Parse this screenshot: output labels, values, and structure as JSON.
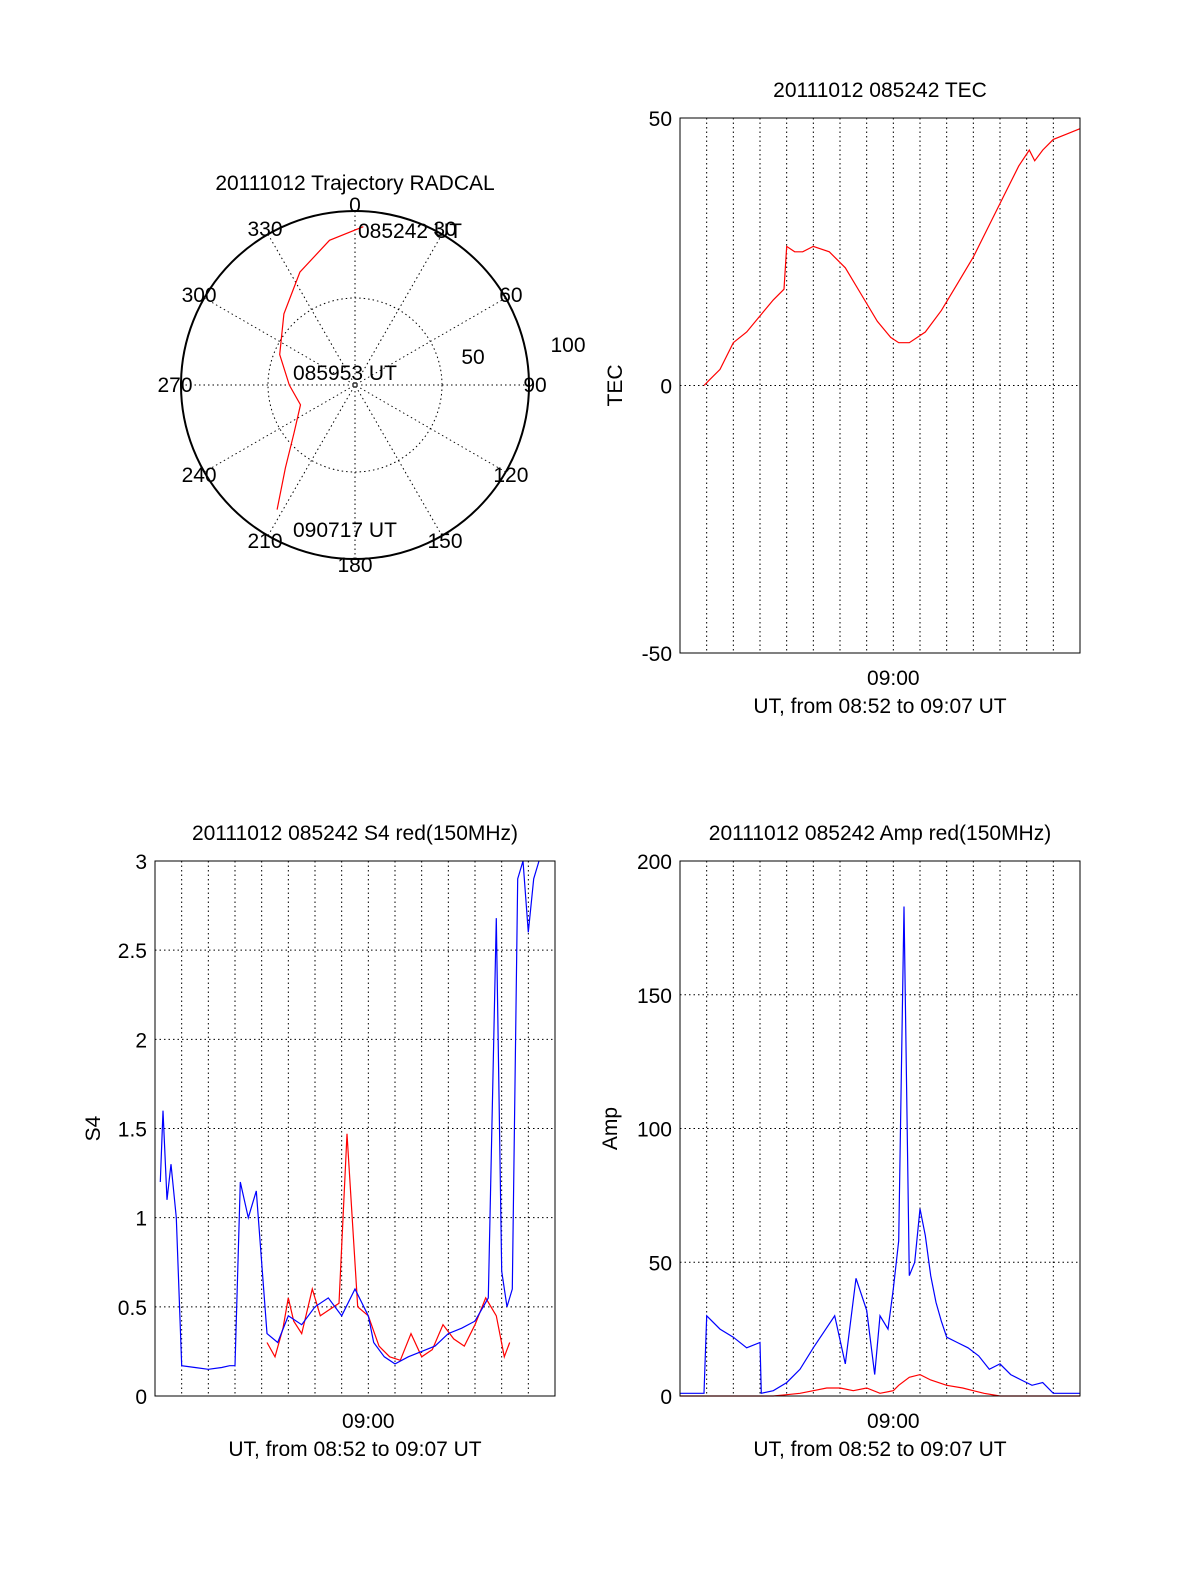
{
  "polar": {
    "title": "20111012 Trajectory RADCAL",
    "azimuth_labels": [
      "0",
      "30",
      "60",
      "90",
      "120",
      "150",
      "180",
      "210",
      "240",
      "270",
      "300",
      "330"
    ],
    "radial_labels": [
      "50",
      "100"
    ],
    "points": [
      {
        "label": "085242 UT",
        "az": 3,
        "el": 8
      },
      {
        "label": "085953 UT",
        "az": 270,
        "el": 90
      },
      {
        "label": "090717 UT",
        "az": 212,
        "el": 14
      }
    ],
    "track": [
      [
        3,
        8
      ],
      [
        350,
        14
      ],
      [
        334,
        25
      ],
      [
        315,
        38
      ],
      [
        292,
        48
      ],
      [
        270,
        56
      ],
      [
        250,
        60
      ],
      [
        232,
        50
      ],
      [
        220,
        34
      ],
      [
        212,
        14
      ]
    ],
    "color": "#ff0000"
  },
  "chart_data": [
    {
      "type": "line",
      "title": "20111012 085242 TEC",
      "ylabel": "TEC",
      "xlabel": "UT, from 08:52 to 09:07 UT",
      "x_tick_label": "09:00",
      "ylim": [
        -50,
        50
      ],
      "y_ticks": [
        "-50",
        "0",
        "50"
      ],
      "x_range_minutes": [
        0,
        15
      ],
      "series": [
        {
          "color": "#ff0000",
          "x": [
            0.9,
            1.1,
            1.5,
            2.0,
            2.5,
            3.0,
            3.5,
            3.9,
            4.0,
            4.3,
            4.6,
            5.0,
            5.6,
            6.2,
            6.8,
            7.4,
            7.9,
            8.2,
            8.6,
            9.2,
            9.8,
            10.4,
            11.0,
            11.6,
            12.2,
            12.7,
            13.1,
            13.3,
            13.6,
            14.0,
            14.5,
            15.0
          ],
          "y": [
            0,
            1,
            3,
            8,
            10,
            13,
            16,
            18,
            26,
            25,
            25,
            26,
            25,
            22,
            17,
            12,
            9,
            8,
            8,
            10,
            14,
            19,
            24,
            30,
            36,
            41,
            44,
            42,
            44,
            46,
            47,
            48
          ]
        }
      ]
    },
    {
      "type": "line",
      "title": "20111012 085242 S4 red(150MHz)",
      "ylabel": "S4",
      "xlabel": "UT, from 08:52 to 09:07 UT",
      "x_tick_label": "09:00",
      "ylim": [
        0,
        3
      ],
      "y_ticks": [
        "0",
        "0.5",
        "1",
        "1.5",
        "2",
        "2.5",
        "3"
      ],
      "x_range_minutes": [
        0,
        15
      ],
      "series": [
        {
          "color": "#ff0000",
          "x": [
            4.2,
            4.5,
            4.8,
            5.0,
            5.2,
            5.5,
            5.9,
            6.2,
            6.5,
            6.9,
            7.2,
            7.6,
            8.0,
            8.4,
            8.8,
            9.2,
            9.6,
            10.0,
            10.4,
            10.8,
            11.2,
            11.6,
            12.0,
            12.4,
            12.8,
            13.1,
            13.3
          ],
          "y": [
            0.3,
            0.22,
            0.38,
            0.55,
            0.42,
            0.35,
            0.6,
            0.45,
            0.48,
            0.52,
            1.47,
            0.5,
            0.45,
            0.28,
            0.22,
            0.2,
            0.35,
            0.22,
            0.26,
            0.4,
            0.32,
            0.28,
            0.4,
            0.55,
            0.45,
            0.22,
            0.3
          ]
        },
        {
          "color": "#0000ff",
          "x": [
            0.2,
            0.3,
            0.45,
            0.6,
            0.8,
            1.0,
            1.5,
            2.0,
            2.5,
            2.8,
            3.0,
            3.2,
            3.5,
            3.8,
            4.2,
            4.6,
            5.0,
            5.5,
            6.0,
            6.5,
            7.0,
            7.5,
            8.0,
            8.2,
            8.6,
            9.0,
            9.5,
            10.0,
            10.5,
            11.0,
            11.5,
            12.0,
            12.5,
            12.8,
            13.0,
            13.2,
            13.4,
            13.6,
            13.8,
            14.0,
            14.2,
            14.4
          ],
          "y": [
            1.2,
            1.6,
            1.1,
            1.3,
            1.0,
            0.17,
            0.16,
            0.15,
            0.16,
            0.17,
            0.17,
            1.2,
            1.0,
            1.15,
            0.35,
            0.3,
            0.45,
            0.4,
            0.5,
            0.55,
            0.45,
            0.6,
            0.45,
            0.3,
            0.22,
            0.18,
            0.22,
            0.25,
            0.28,
            0.35,
            0.38,
            0.42,
            0.55,
            2.68,
            0.7,
            0.5,
            0.6,
            2.9,
            3.0,
            2.6,
            2.9,
            3.0
          ]
        }
      ]
    },
    {
      "type": "line",
      "title": "20111012 085242 Amp red(150MHz)",
      "ylabel": "Amp",
      "xlabel": "UT, from 08:52 to 09:07 UT",
      "x_tick_label": "09:00",
      "ylim": [
        0,
        200
      ],
      "y_ticks": [
        "0",
        "50",
        "100",
        "150",
        "200"
      ],
      "x_range_minutes": [
        0,
        15
      ],
      "series": [
        {
          "color": "#ff0000",
          "x": [
            0.0,
            3.0,
            3.5,
            4.0,
            4.5,
            5.0,
            5.5,
            6.0,
            6.5,
            7.0,
            7.5,
            8.0,
            8.2,
            8.6,
            9.0,
            9.4,
            10.0,
            10.6,
            11.0,
            11.4,
            12.0,
            15.0
          ],
          "y": [
            0,
            0,
            0,
            0.5,
            1,
            2,
            3,
            3,
            2,
            3,
            1,
            2,
            4,
            7,
            8,
            6,
            4,
            3,
            2,
            1,
            0,
            0
          ]
        },
        {
          "color": "#0000ff",
          "x": [
            0.0,
            0.5,
            0.9,
            1.0,
            1.5,
            2.0,
            2.5,
            3.0,
            3.05,
            3.5,
            4.0,
            4.5,
            5.0,
            5.4,
            5.8,
            6.2,
            6.6,
            7.0,
            7.3,
            7.5,
            7.8,
            8.0,
            8.2,
            8.4,
            8.6,
            8.8,
            9.0,
            9.2,
            9.4,
            9.6,
            9.8,
            10.0,
            10.4,
            10.8,
            11.2,
            11.6,
            12.0,
            12.4,
            12.8,
            13.2,
            13.6,
            14.0,
            14.5,
            15.0
          ],
          "y": [
            1,
            1,
            1,
            30,
            25,
            22,
            18,
            20,
            1,
            2,
            5,
            10,
            18,
            24,
            30,
            12,
            44,
            32,
            8,
            30,
            25,
            40,
            58,
            183,
            45,
            50,
            70,
            60,
            45,
            35,
            28,
            22,
            20,
            18,
            15,
            10,
            12,
            8,
            6,
            4,
            5,
            1,
            1,
            1
          ]
        }
      ]
    }
  ]
}
